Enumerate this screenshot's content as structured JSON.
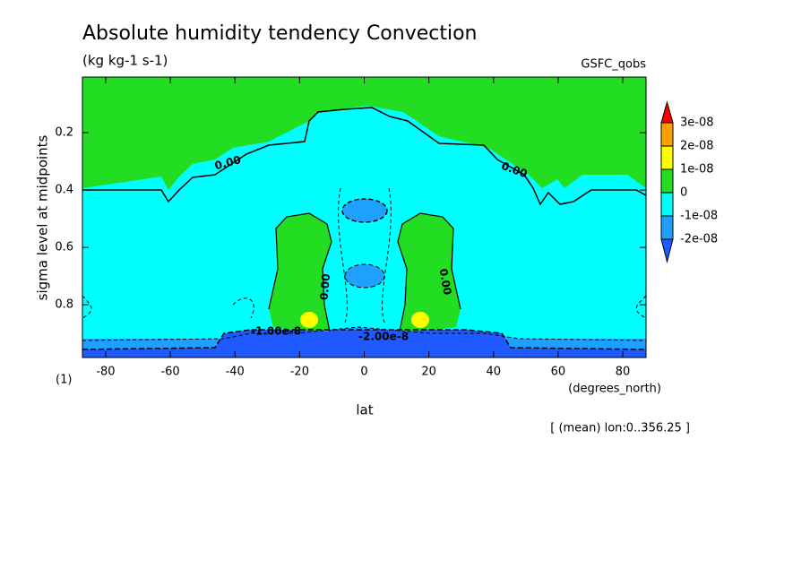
{
  "chart_data": {
    "type": "contour",
    "title": "Absolute humidity tendency Convection",
    "subtitle": "(kg kg-1 s-1)",
    "dataset": "GSFC_qobs",
    "xlabel": "lat",
    "xunits": "(degrees_north)",
    "ylabel": "sigma level at midpoints",
    "frame_label": "(1)",
    "footnote": "[ (mean) lon:0..356.25 ]",
    "xlim": [
      -87.19,
      87.19
    ],
    "xticks": [
      -80,
      -60,
      -40,
      -20,
      0,
      20,
      40,
      60,
      80
    ],
    "ylim": [
      0.984,
      0.006
    ],
    "yticks": [
      0.2,
      0.4,
      0.6,
      0.8
    ],
    "levels": [
      {
        "value": -2e-08,
        "label": "-2e-08"
      },
      {
        "value": -1e-08,
        "label": "-1e-08"
      },
      0,
      {
        "value": 1e-08,
        "label": "1e-08"
      },
      {
        "value": 2e-08,
        "label": "2e-08"
      },
      {
        "value": 3e-08,
        "label": "3e-08"
      }
    ],
    "colors": [
      "#1e5aff",
      "#1ea0ff",
      "#00ffff",
      "#22dd22",
      "#ffff00",
      "#ffa000",
      "#ff0000"
    ],
    "contour_labels": [
      "0.00",
      "0.00",
      "0.00",
      "0.00",
      "-1.00e-8",
      "-2.00e-8"
    ]
  }
}
